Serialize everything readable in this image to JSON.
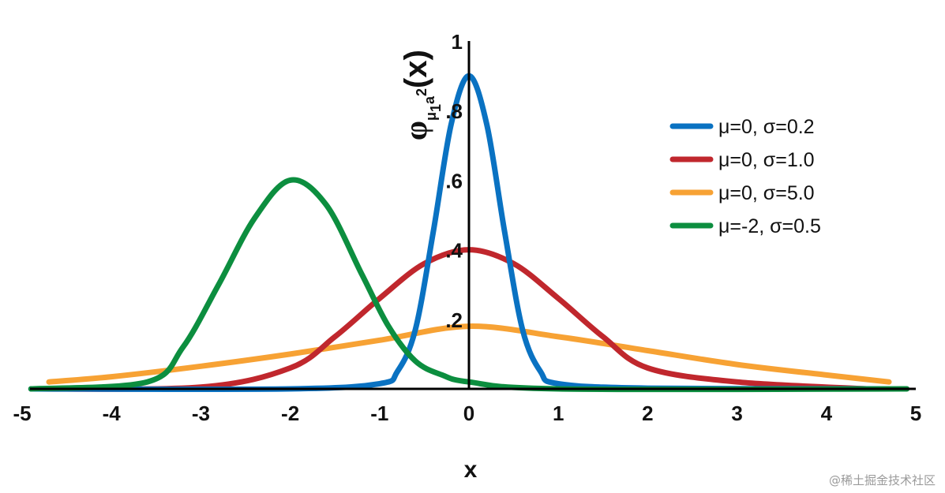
{
  "chart_data": {
    "type": "line",
    "xlabel": "x",
    "ylabel": {
      "symbol": "φ",
      "sub": "μ",
      "sub2": "1",
      "sup_base": "a",
      "sup": "2",
      "arg": "(x)"
    },
    "xlim": [
      -5,
      5
    ],
    "ylim": [
      0,
      1
    ],
    "x_ticks": [
      {
        "value": -5,
        "label": "-5"
      },
      {
        "value": -4,
        "label": "-4"
      },
      {
        "value": -3,
        "label": "-3"
      },
      {
        "value": -2,
        "label": "-2"
      },
      {
        "value": -1,
        "label": "-1"
      },
      {
        "value": 0,
        "label": "0"
      },
      {
        "value": 1,
        "label": "1"
      },
      {
        "value": 2,
        "label": "2"
      },
      {
        "value": 3,
        "label": "3"
      },
      {
        "value": 4,
        "label": "4"
      },
      {
        "value": 5,
        "label": "5"
      }
    ],
    "y_ticks": [
      {
        "value": 0.2,
        "label": ".2"
      },
      {
        "value": 0.4,
        "label": ".4"
      },
      {
        "value": 0.6,
        "label": ".6"
      },
      {
        "value": 0.8,
        "label": ".8"
      },
      {
        "value": 1.0,
        "label": "1"
      }
    ],
    "grid": false,
    "legend_position": "top-right",
    "series": [
      {
        "name": "μ=0, σ=0.2",
        "color": "#0a72c2",
        "mu": 0,
        "sigma": 0.2,
        "peak": 0.9,
        "x_range": [
          -4.9,
          4.7
        ],
        "points": [
          [
            -4.9,
            0.0
          ],
          [
            -2,
            0.0
          ],
          [
            -1.0,
            0.015
          ],
          [
            -0.8,
            0.05
          ],
          [
            -0.6,
            0.17
          ],
          [
            -0.4,
            0.45
          ],
          [
            -0.2,
            0.76
          ],
          [
            0,
            0.9
          ],
          [
            0.2,
            0.76
          ],
          [
            0.4,
            0.45
          ],
          [
            0.6,
            0.17
          ],
          [
            0.8,
            0.05
          ],
          [
            1.0,
            0.015
          ],
          [
            2,
            0.002
          ],
          [
            4.7,
            0.0
          ]
        ]
      },
      {
        "name": "μ=0, σ=1.0",
        "color": "#c0272d",
        "mu": 0,
        "sigma": 1.0,
        "peak": 0.4,
        "x_range": [
          -4.9,
          4.45
        ],
        "points": [
          [
            -4.9,
            0.0
          ],
          [
            -3,
            0.005
          ],
          [
            -2,
            0.06
          ],
          [
            -1.5,
            0.15
          ],
          [
            -1,
            0.26
          ],
          [
            -0.5,
            0.36
          ],
          [
            0,
            0.4
          ],
          [
            0.5,
            0.36
          ],
          [
            1,
            0.26
          ],
          [
            1.5,
            0.15
          ],
          [
            2,
            0.06
          ],
          [
            3,
            0.02
          ],
          [
            4.45,
            0.0
          ]
        ]
      },
      {
        "name": "μ=0, σ=5.0",
        "color": "#f7a234",
        "mu": 0,
        "sigma": 5.0,
        "peak": 0.18,
        "x_range": [
          -4.7,
          4.7
        ],
        "points": [
          [
            -4.7,
            0.02
          ],
          [
            -4,
            0.035
          ],
          [
            -3,
            0.065
          ],
          [
            -2,
            0.1
          ],
          [
            -1,
            0.14
          ],
          [
            0,
            0.18
          ],
          [
            1,
            0.15
          ],
          [
            2,
            0.11
          ],
          [
            3,
            0.07
          ],
          [
            4,
            0.04
          ],
          [
            4.7,
            0.02
          ]
        ]
      },
      {
        "name": "μ=-2, σ=0.5",
        "color": "#0c8e3f",
        "mu": -2,
        "sigma": 0.5,
        "peak": 0.6,
        "x_range": [
          -4.9,
          4.9
        ],
        "points": [
          [
            -4.9,
            0.0
          ],
          [
            -3.6,
            0.02
          ],
          [
            -3.2,
            0.12
          ],
          [
            -2.8,
            0.3
          ],
          [
            -2.4,
            0.49
          ],
          [
            -2.0,
            0.6
          ],
          [
            -1.6,
            0.53
          ],
          [
            -1.2,
            0.33
          ],
          [
            -0.9,
            0.18
          ],
          [
            -0.6,
            0.08
          ],
          [
            -0.3,
            0.04
          ],
          [
            0,
            0.02
          ],
          [
            1,
            0.0
          ],
          [
            4.9,
            0.0
          ]
        ]
      }
    ]
  },
  "watermark": "@稀土掘金技术社区"
}
